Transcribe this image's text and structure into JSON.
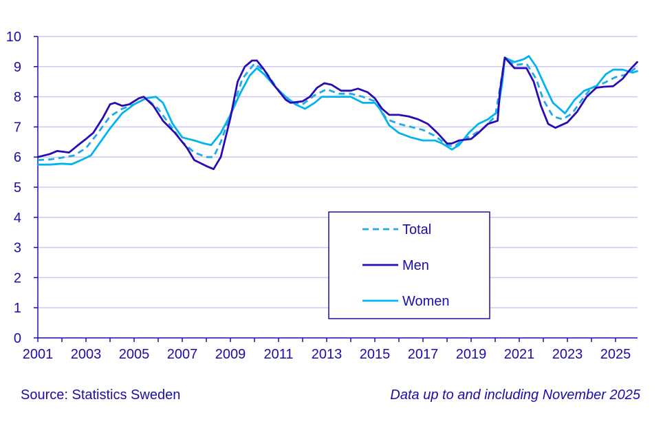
{
  "chart_data": {
    "type": "line",
    "title": "",
    "xlabel": "",
    "ylabel": "",
    "ylim": [
      0,
      10
    ],
    "xlim": [
      2001,
      2025.92
    ],
    "yticks": [
      0,
      1,
      2,
      3,
      4,
      5,
      6,
      7,
      8,
      9,
      10
    ],
    "xticks": [
      2001,
      2003,
      2005,
      2007,
      2009,
      2011,
      2013,
      2015,
      2017,
      2019,
      2021,
      2023,
      2025
    ],
    "grid": "horizontal",
    "legend_position": "center-right, inside plot",
    "series": [
      {
        "name": "Total",
        "color": "#1fa9e8",
        "style": "dashed",
        "points": [
          [
            2001.0,
            5.9
          ],
          [
            2001.5,
            5.92
          ],
          [
            2002.0,
            5.98
          ],
          [
            2002.5,
            6.05
          ],
          [
            2003.0,
            6.3
          ],
          [
            2003.5,
            6.8
          ],
          [
            2004.0,
            7.35
          ],
          [
            2004.5,
            7.6
          ],
          [
            2005.0,
            7.75
          ],
          [
            2005.5,
            7.95
          ],
          [
            2006.0,
            7.6
          ],
          [
            2006.5,
            7.05
          ],
          [
            2007.0,
            6.5
          ],
          [
            2007.5,
            6.15
          ],
          [
            2008.0,
            6.0
          ],
          [
            2008.3,
            6.0
          ],
          [
            2008.6,
            6.5
          ],
          [
            2009.0,
            7.4
          ],
          [
            2009.5,
            8.6
          ],
          [
            2010.0,
            9.1
          ],
          [
            2010.5,
            8.8
          ],
          [
            2011.0,
            8.2
          ],
          [
            2011.5,
            7.85
          ],
          [
            2012.0,
            7.75
          ],
          [
            2012.5,
            8.05
          ],
          [
            2013.0,
            8.25
          ],
          [
            2013.5,
            8.1
          ],
          [
            2014.0,
            8.1
          ],
          [
            2014.5,
            8.0
          ],
          [
            2015.0,
            7.85
          ],
          [
            2015.5,
            7.25
          ],
          [
            2016.0,
            7.1
          ],
          [
            2016.5,
            7.0
          ],
          [
            2017.0,
            6.9
          ],
          [
            2017.5,
            6.7
          ],
          [
            2018.0,
            6.4
          ],
          [
            2018.3,
            6.35
          ],
          [
            2018.7,
            6.6
          ],
          [
            2019.0,
            6.7
          ],
          [
            2019.5,
            6.95
          ],
          [
            2020.0,
            7.35
          ],
          [
            2020.2,
            8.3
          ],
          [
            2020.4,
            9.3
          ],
          [
            2020.8,
            9.05
          ],
          [
            2021.3,
            9.1
          ],
          [
            2021.7,
            8.6
          ],
          [
            2022.0,
            7.9
          ],
          [
            2022.4,
            7.35
          ],
          [
            2022.8,
            7.25
          ],
          [
            2023.2,
            7.45
          ],
          [
            2023.6,
            7.9
          ],
          [
            2024.0,
            8.3
          ],
          [
            2024.5,
            8.45
          ],
          [
            2025.0,
            8.65
          ],
          [
            2025.5,
            8.75
          ],
          [
            2025.9,
            9.0
          ]
        ]
      },
      {
        "name": "Men",
        "color": "#2a0ab4",
        "style": "solid",
        "points": [
          [
            2001.0,
            6.0
          ],
          [
            2001.5,
            6.1
          ],
          [
            2001.8,
            6.2
          ],
          [
            2002.3,
            6.15
          ],
          [
            2002.6,
            6.35
          ],
          [
            2003.0,
            6.6
          ],
          [
            2003.3,
            6.8
          ],
          [
            2003.7,
            7.3
          ],
          [
            2004.0,
            7.75
          ],
          [
            2004.2,
            7.8
          ],
          [
            2004.5,
            7.7
          ],
          [
            2004.8,
            7.75
          ],
          [
            2005.2,
            7.95
          ],
          [
            2005.4,
            8.0
          ],
          [
            2005.8,
            7.7
          ],
          [
            2006.2,
            7.2
          ],
          [
            2006.7,
            6.8
          ],
          [
            2007.2,
            6.3
          ],
          [
            2007.5,
            5.9
          ],
          [
            2008.0,
            5.7
          ],
          [
            2008.3,
            5.6
          ],
          [
            2008.6,
            6.0
          ],
          [
            2009.0,
            7.3
          ],
          [
            2009.3,
            8.5
          ],
          [
            2009.6,
            9.0
          ],
          [
            2009.9,
            9.2
          ],
          [
            2010.1,
            9.2
          ],
          [
            2010.4,
            8.9
          ],
          [
            2010.8,
            8.4
          ],
          [
            2011.3,
            7.9
          ],
          [
            2011.5,
            7.8
          ],
          [
            2012.0,
            7.85
          ],
          [
            2012.3,
            8.0
          ],
          [
            2012.6,
            8.3
          ],
          [
            2012.9,
            8.45
          ],
          [
            2013.2,
            8.4
          ],
          [
            2013.6,
            8.2
          ],
          [
            2014.0,
            8.2
          ],
          [
            2014.3,
            8.27
          ],
          [
            2014.7,
            8.15
          ],
          [
            2015.0,
            7.95
          ],
          [
            2015.3,
            7.6
          ],
          [
            2015.6,
            7.4
          ],
          [
            2016.0,
            7.4
          ],
          [
            2016.4,
            7.35
          ],
          [
            2016.8,
            7.25
          ],
          [
            2017.2,
            7.1
          ],
          [
            2017.6,
            6.8
          ],
          [
            2018.0,
            6.45
          ],
          [
            2018.2,
            6.45
          ],
          [
            2018.5,
            6.55
          ],
          [
            2019.0,
            6.6
          ],
          [
            2019.3,
            6.8
          ],
          [
            2019.7,
            7.1
          ],
          [
            2020.1,
            7.2
          ],
          [
            2020.2,
            8.2
          ],
          [
            2020.4,
            9.3
          ],
          [
            2020.8,
            8.95
          ],
          [
            2021.3,
            8.95
          ],
          [
            2021.6,
            8.5
          ],
          [
            2021.9,
            7.7
          ],
          [
            2022.2,
            7.1
          ],
          [
            2022.5,
            6.97
          ],
          [
            2023.0,
            7.15
          ],
          [
            2023.4,
            7.5
          ],
          [
            2023.8,
            8.0
          ],
          [
            2024.2,
            8.3
          ],
          [
            2024.5,
            8.33
          ],
          [
            2024.9,
            8.35
          ],
          [
            2025.3,
            8.6
          ],
          [
            2025.6,
            8.9
          ],
          [
            2025.9,
            9.15
          ]
        ]
      },
      {
        "name": "Women",
        "color": "#00b4ee",
        "style": "solid",
        "points": [
          [
            2001.0,
            5.75
          ],
          [
            2001.5,
            5.75
          ],
          [
            2002.0,
            5.78
          ],
          [
            2002.4,
            5.76
          ],
          [
            2002.8,
            5.9
          ],
          [
            2003.2,
            6.05
          ],
          [
            2003.6,
            6.5
          ],
          [
            2004.0,
            6.95
          ],
          [
            2004.5,
            7.45
          ],
          [
            2005.0,
            7.75
          ],
          [
            2005.5,
            7.95
          ],
          [
            2005.9,
            8.0
          ],
          [
            2006.2,
            7.8
          ],
          [
            2006.6,
            7.1
          ],
          [
            2007.0,
            6.65
          ],
          [
            2007.5,
            6.55
          ],
          [
            2007.9,
            6.45
          ],
          [
            2008.2,
            6.4
          ],
          [
            2008.6,
            6.8
          ],
          [
            2009.0,
            7.4
          ],
          [
            2009.4,
            8.1
          ],
          [
            2009.8,
            8.7
          ],
          [
            2010.1,
            8.95
          ],
          [
            2010.4,
            8.75
          ],
          [
            2010.9,
            8.3
          ],
          [
            2011.3,
            8.0
          ],
          [
            2011.7,
            7.75
          ],
          [
            2012.1,
            7.6
          ],
          [
            2012.5,
            7.8
          ],
          [
            2012.8,
            8.0
          ],
          [
            2013.3,
            8.0
          ],
          [
            2013.7,
            8.0
          ],
          [
            2014.0,
            8.0
          ],
          [
            2014.5,
            7.8
          ],
          [
            2015.0,
            7.8
          ],
          [
            2015.2,
            7.6
          ],
          [
            2015.6,
            7.05
          ],
          [
            2016.0,
            6.8
          ],
          [
            2016.5,
            6.65
          ],
          [
            2017.0,
            6.55
          ],
          [
            2017.5,
            6.55
          ],
          [
            2017.8,
            6.45
          ],
          [
            2018.2,
            6.25
          ],
          [
            2018.5,
            6.4
          ],
          [
            2018.9,
            6.8
          ],
          [
            2019.3,
            7.1
          ],
          [
            2019.7,
            7.25
          ],
          [
            2020.1,
            7.5
          ],
          [
            2020.3,
            8.5
          ],
          [
            2020.4,
            9.3
          ],
          [
            2020.8,
            9.15
          ],
          [
            2021.2,
            9.25
          ],
          [
            2021.4,
            9.35
          ],
          [
            2021.7,
            9.0
          ],
          [
            2022.1,
            8.3
          ],
          [
            2022.4,
            7.8
          ],
          [
            2022.9,
            7.45
          ],
          [
            2023.3,
            7.9
          ],
          [
            2023.7,
            8.2
          ],
          [
            2024.2,
            8.35
          ],
          [
            2024.6,
            8.75
          ],
          [
            2024.9,
            8.9
          ],
          [
            2025.3,
            8.9
          ],
          [
            2025.7,
            8.8
          ],
          [
            2025.9,
            8.85
          ]
        ]
      }
    ]
  },
  "footer": {
    "source": "Source: Statistics Sweden",
    "note": "Data up to and including November 2025"
  },
  "colors": {
    "axis": "#1a0dab",
    "grid": "#cfc8f0",
    "text": "#1a0dab"
  }
}
